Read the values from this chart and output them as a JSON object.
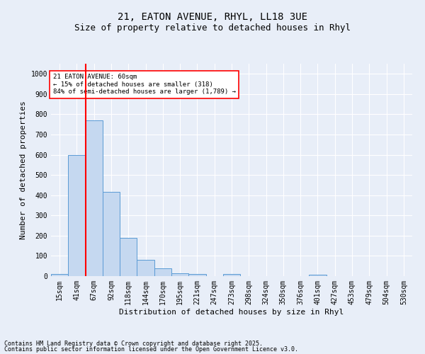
{
  "title1": "21, EATON AVENUE, RHYL, LL18 3UE",
  "title2": "Size of property relative to detached houses in Rhyl",
  "xlabel": "Distribution of detached houses by size in Rhyl",
  "ylabel": "Number of detached properties",
  "categories": [
    "15sqm",
    "41sqm",
    "67sqm",
    "92sqm",
    "118sqm",
    "144sqm",
    "170sqm",
    "195sqm",
    "221sqm",
    "247sqm",
    "273sqm",
    "298sqm",
    "324sqm",
    "350sqm",
    "376sqm",
    "401sqm",
    "427sqm",
    "453sqm",
    "479sqm",
    "504sqm",
    "530sqm"
  ],
  "values": [
    12,
    600,
    770,
    415,
    190,
    80,
    37,
    15,
    10,
    0,
    10,
    0,
    0,
    0,
    0,
    8,
    0,
    0,
    0,
    0,
    0
  ],
  "bar_color": "#c5d8f0",
  "bar_edge_color": "#5b9bd5",
  "vline_color": "red",
  "vline_x": 1.5,
  "annotation_title": "21 EATON AVENUE: 60sqm",
  "annotation_line1": "← 15% of detached houses are smaller (318)",
  "annotation_line2": "84% of semi-detached houses are larger (1,789) →",
  "annotation_box_color": "white",
  "annotation_box_edge": "red",
  "ylim": [
    0,
    1050
  ],
  "yticks": [
    0,
    100,
    200,
    300,
    400,
    500,
    600,
    700,
    800,
    900,
    1000
  ],
  "footnote1": "Contains HM Land Registry data © Crown copyright and database right 2025.",
  "footnote2": "Contains public sector information licensed under the Open Government Licence v3.0.",
  "bg_color": "#e8eef8",
  "grid_color": "#ffffff",
  "title_fontsize": 10,
  "subtitle_fontsize": 9,
  "tick_fontsize": 7,
  "label_fontsize": 8,
  "footnote_fontsize": 6
}
